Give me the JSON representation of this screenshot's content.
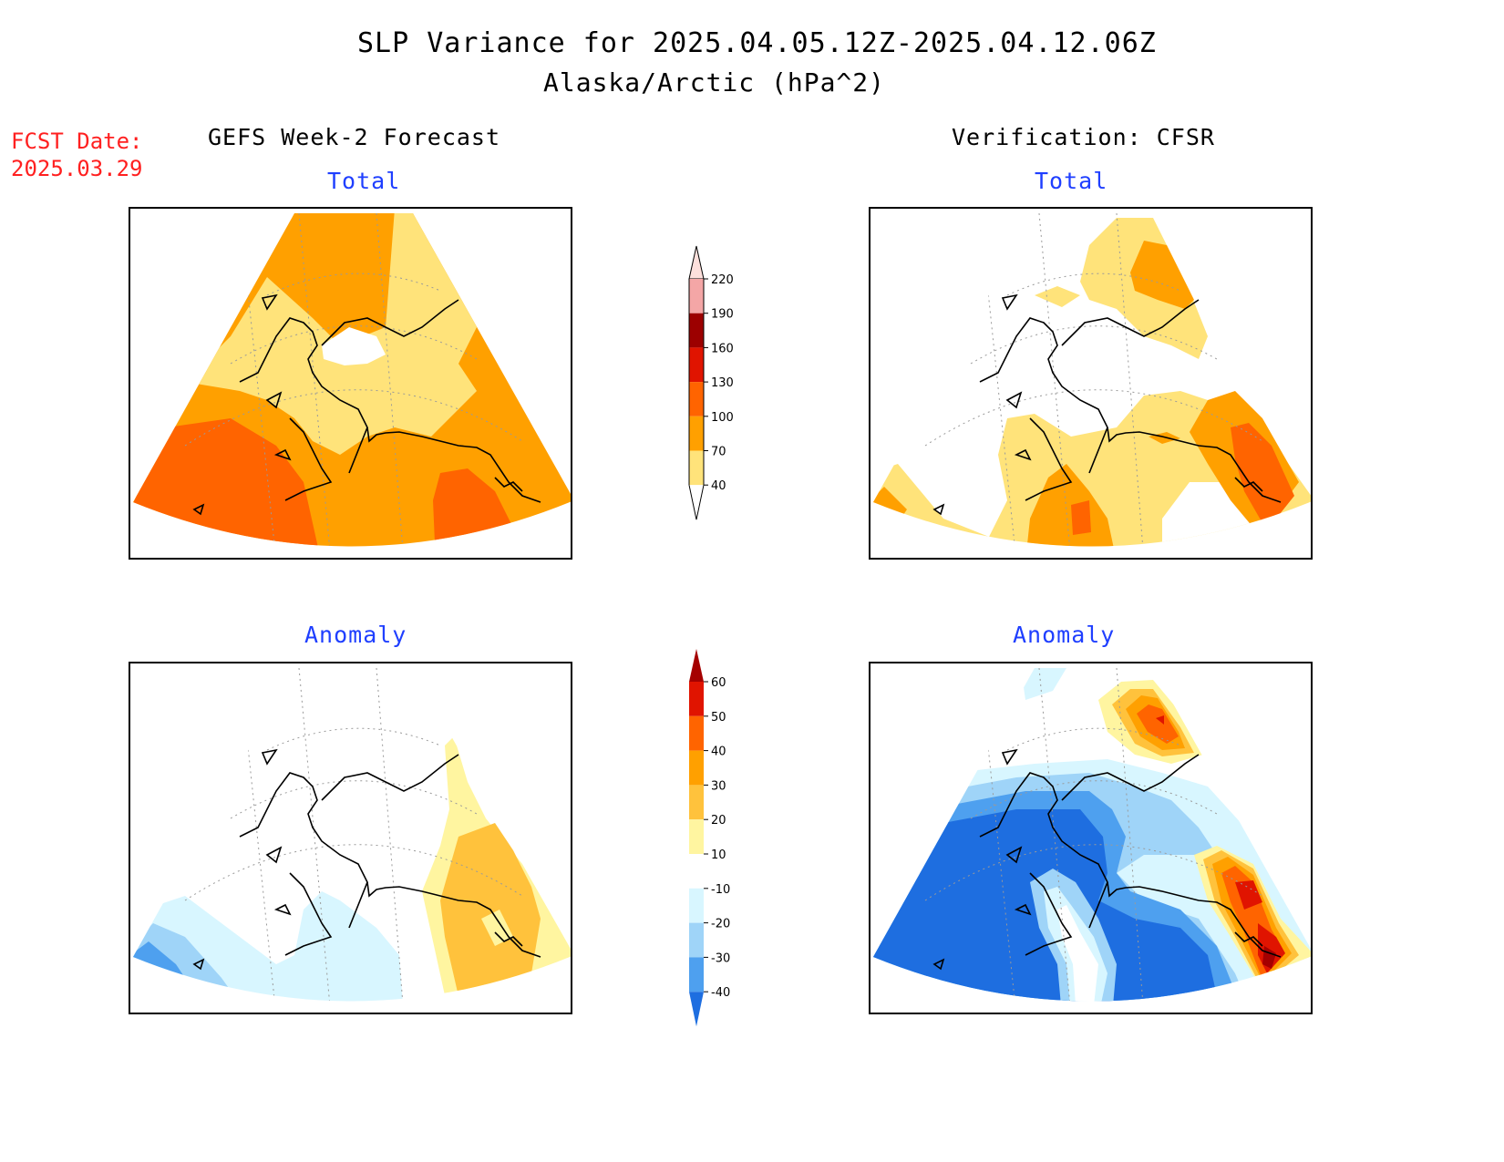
{
  "header": {
    "title": "SLP Variance for 2025.04.05.12Z-2025.04.12.06Z",
    "subtitle": "Alaska/Arctic (hPa^2)"
  },
  "forecast_date": {
    "label": "FCST Date:",
    "value": "2025.03.29"
  },
  "columns": {
    "left": "GEFS Week-2 Forecast",
    "right": "Verification: CFSR"
  },
  "panels": {
    "forecast_total": "Total",
    "verification_total": "Total",
    "forecast_anomaly": "Anomaly",
    "verification_anomaly": "Anomaly"
  },
  "colorbars": {
    "total": {
      "labels": [
        "220",
        "190",
        "160",
        "130",
        "100",
        "70",
        "40"
      ],
      "colors": [
        "#fde0dc",
        "#f4a6a6",
        "#9c0000",
        "#e01400",
        "#ff6400",
        "#ffa000",
        "#ffe37a"
      ]
    },
    "anomaly": {
      "labels": [
        "60",
        "50",
        "40",
        "30",
        "20",
        "10",
        "-10",
        "-20",
        "-30",
        "-40"
      ],
      "colors": [
        "#a50000",
        "#e01400",
        "#ff6400",
        "#ffa000",
        "#ffc23c",
        "#fff5a0",
        "#ffffff",
        "#d8f6ff",
        "#9fd4f8",
        "#4ea0ef",
        "#1e6ee0"
      ]
    }
  },
  "fill_colors": {
    "total_40_70": "#ffe37a",
    "total_70_100": "#ffa000",
    "total_100_130": "#ff6400",
    "anom_10_20": "#fff5a0",
    "anom_20_30": "#ffc23c",
    "anom_30_40": "#ffa000",
    "anom_40_50": "#ff6400",
    "anom_50_60": "#e01400",
    "anom_60_plus": "#a50000",
    "anom_m10_m20": "#d8f6ff",
    "anom_m20_m30": "#9fd4f8",
    "anom_m30_m40": "#4ea0ef",
    "anom_m40_minus": "#1e6ee0"
  }
}
